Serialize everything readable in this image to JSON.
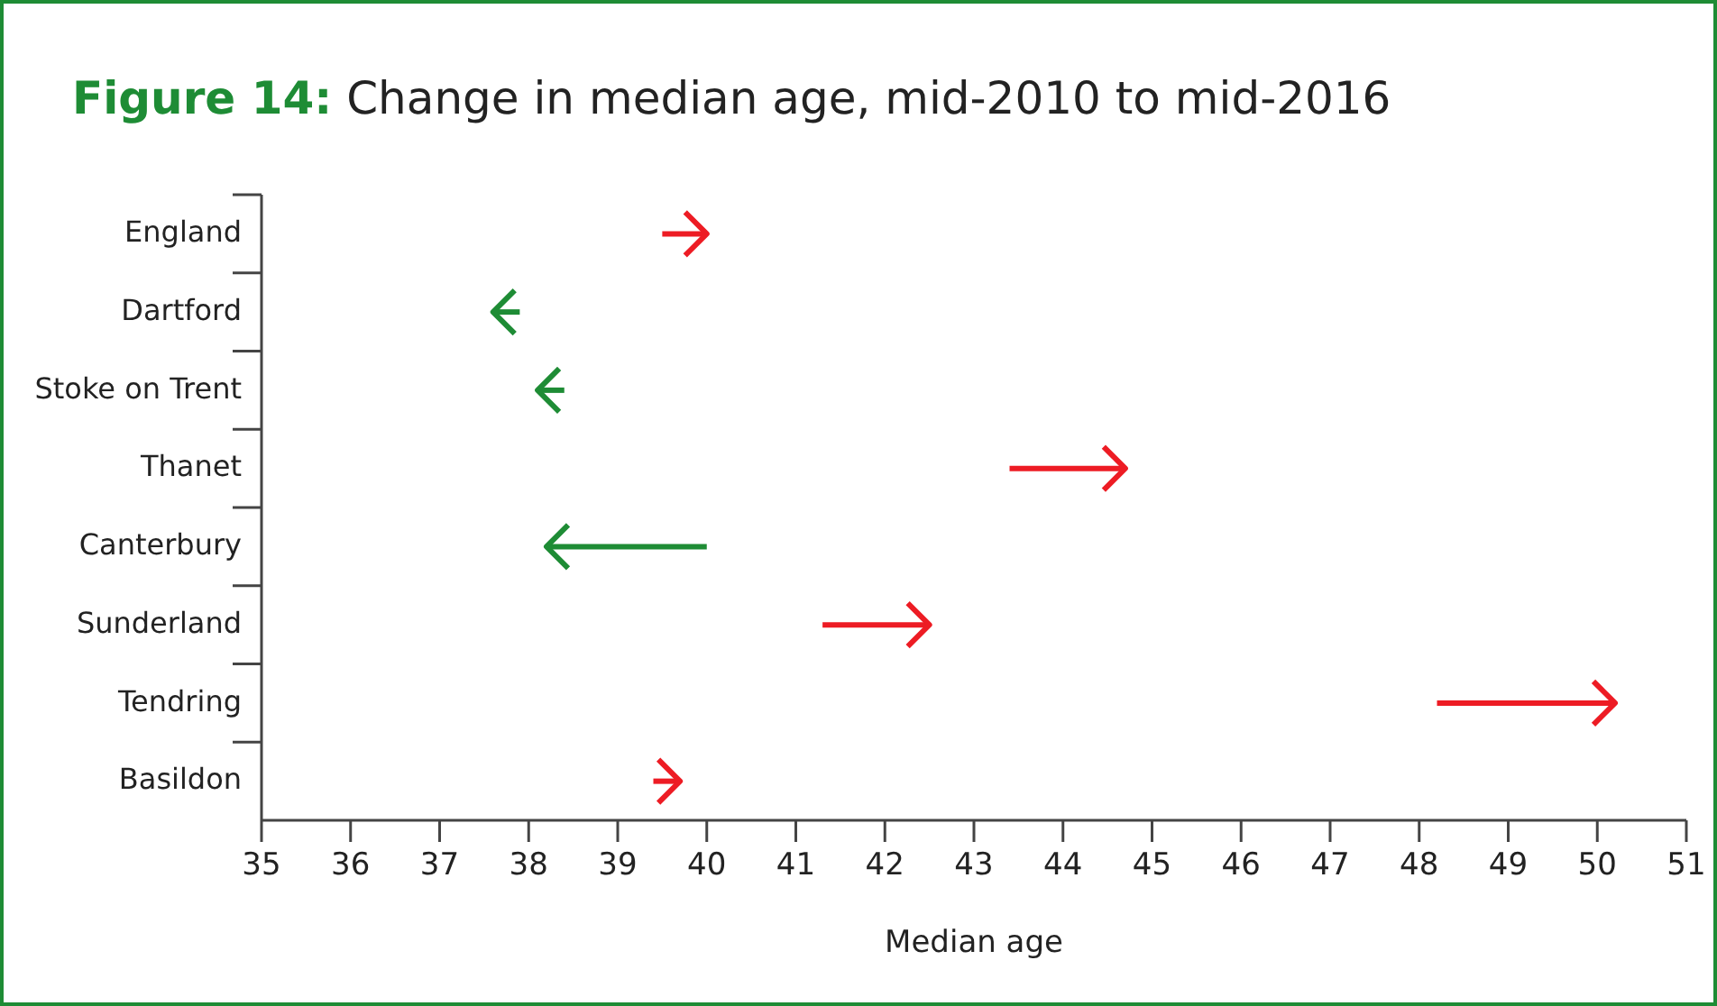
{
  "chart_data": {
    "type": "bar",
    "orientation": "horizontal",
    "title": "Figure 14: Change in median age, mid-2010 to mid-2016",
    "xlabel": "Median age",
    "categories": [
      "England",
      "Dartford",
      "Stoke on Trent",
      "Thanet",
      "Canterbury",
      "Sunderland",
      "Tendring",
      "Basildon"
    ],
    "base": [
      39.5,
      37.9,
      38.4,
      43.4,
      40.0,
      41.3,
      48.2,
      39.4
    ],
    "values": [
      0.5,
      -0.3,
      -0.3,
      1.3,
      -1.8,
      1.2,
      2.0,
      0.3
    ],
    "colors": [
      "#ed1c24",
      "#1e8c35",
      "#1e8c35",
      "#ed1c24",
      "#1e8c35",
      "#ed1c24",
      "#ed1c24",
      "#ed1c24"
    ],
    "xlim": [
      35,
      51
    ],
    "xticks": [
      35,
      36,
      37,
      38,
      39,
      40,
      41,
      42,
      43,
      44,
      45,
      46,
      47,
      48,
      49,
      50,
      51
    ]
  }
}
